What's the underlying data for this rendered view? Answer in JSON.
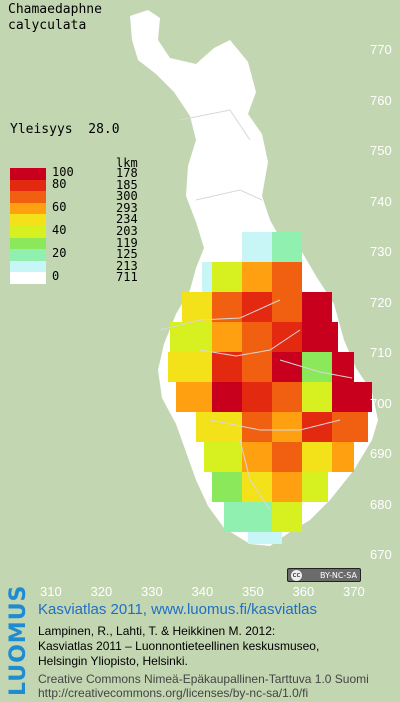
{
  "species_name": "Chamaedaphne\ncalyculata",
  "frequency_label": "Yleisyys",
  "frequency_value": "28.0",
  "legend": {
    "count_header": "lkm",
    "levels": [
      {
        "label": "100",
        "count": "178",
        "color": "#c8001e"
      },
      {
        "label": "80",
        "count": "185",
        "color": "#e32a10"
      },
      {
        "label": "",
        "count": "300",
        "color": "#f06010"
      },
      {
        "label": "60",
        "count": "293",
        "color": "#ffa010"
      },
      {
        "label": "",
        "count": "234",
        "color": "#f3e11a"
      },
      {
        "label": "40",
        "count": "203",
        "color": "#d6f020"
      },
      {
        "label": "",
        "count": "119",
        "color": "#8ae85a"
      },
      {
        "label": "20",
        "count": "125",
        "color": "#8ff0b0"
      },
      {
        "label": "",
        "count": "213",
        "color": "#c8f5f5"
      },
      {
        "label": "0",
        "count": "711",
        "color": "#ffffff"
      }
    ]
  },
  "axes": {
    "y_ticks": [
      "770",
      "760",
      "750",
      "740",
      "730",
      "720",
      "710",
      "700",
      "690",
      "680",
      "670"
    ],
    "x_ticks": [
      "310",
      "320",
      "330",
      "340",
      "350",
      "360",
      "370"
    ]
  },
  "colors": {
    "background": "#c3d6b2",
    "land": "#ffffff",
    "tick_text": "#ffffff",
    "accent": "#1f8bd0"
  },
  "cc_badge": "BY-NC-SA",
  "logo_text": "LUOMUS",
  "footer": {
    "title": "Kasviatlas 2011, www.luomus.fi/kasviatlas",
    "citation_1": "Lampinen, R., Lahti, T. & Heikkinen M. 2012:",
    "citation_2": "Kasviatlas 2011 – Luonnontieteellinen keskusmuseo,",
    "citation_3": "Helsingin Yliopisto, Helsinki.",
    "license_1": "Creative Commons Nimeä-Epäkaupallinen-Tarttuva 1.0 Suomi",
    "license_2": "http://creativecommons.org/licenses/by-nc-sa/1.0/fi"
  }
}
